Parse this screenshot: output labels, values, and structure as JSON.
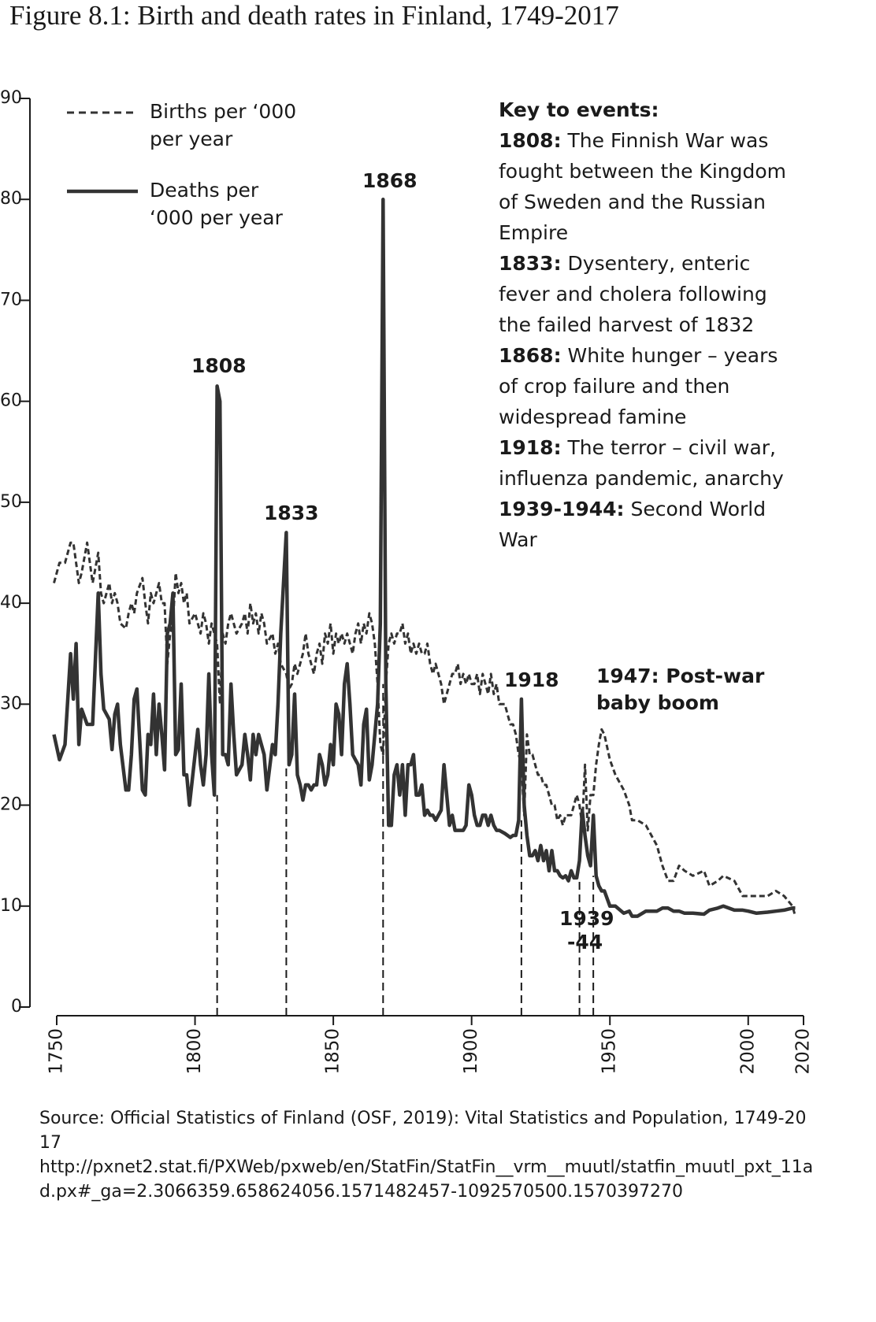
{
  "chart_data": {
    "type": "line",
    "title": "Figure 8.1: Birth and death rates in Finland, 1749-2017",
    "x": [
      1749,
      1751,
      1753,
      1755,
      1756,
      1757,
      1758,
      1759,
      1761,
      1763,
      1765,
      1766,
      1767,
      1769,
      1770,
      1771,
      1772,
      1773,
      1775,
      1776,
      1777,
      1778,
      1779,
      1781,
      1782,
      1783,
      1784,
      1785,
      1786,
      1787,
      1788,
      1789,
      1790,
      1791,
      1792,
      1793,
      1794,
      1795,
      1796,
      1797,
      1798,
      1800,
      1801,
      1802,
      1803,
      1804,
      1805,
      1806,
      1807,
      1808,
      1809,
      1810,
      1811,
      1812,
      1813,
      1814,
      1815,
      1817,
      1818,
      1819,
      1820,
      1821,
      1822,
      1823,
      1824,
      1825,
      1826,
      1828,
      1829,
      1830,
      1831,
      1833,
      1834,
      1835,
      1836,
      1837,
      1838,
      1839,
      1840,
      1841,
      1842,
      1843,
      1844,
      1845,
      1846,
      1847,
      1848,
      1849,
      1850,
      1851,
      1852,
      1853,
      1854,
      1855,
      1856,
      1857,
      1858,
      1859,
      1860,
      1861,
      1862,
      1863,
      1864,
      1865,
      1866,
      1867,
      1868,
      1869,
      1870,
      1871,
      1872,
      1873,
      1874,
      1875,
      1876,
      1877,
      1878,
      1879,
      1880,
      1881,
      1882,
      1883,
      1884,
      1885,
      1886,
      1887,
      1888,
      1889,
      1890,
      1891,
      1892,
      1893,
      1894,
      1895,
      1896,
      1897,
      1898,
      1899,
      1900,
      1901,
      1902,
      1903,
      1904,
      1905,
      1906,
      1907,
      1908,
      1909,
      1910,
      1912,
      1914,
      1915,
      1916,
      1917,
      1918,
      1919,
      1920,
      1921,
      1922,
      1923,
      1924,
      1925,
      1926,
      1927,
      1928,
      1929,
      1930,
      1931,
      1932,
      1933,
      1934,
      1935,
      1936,
      1937,
      1938,
      1939,
      1940,
      1941,
      1942,
      1943,
      1944,
      1945,
      1946,
      1947,
      1948,
      1950,
      1952,
      1955,
      1957,
      1958,
      1960,
      1963,
      1965,
      1967,
      1969,
      1971,
      1973,
      1975,
      1977,
      1980,
      1984,
      1986,
      1989,
      1991,
      1995,
      1998,
      2000,
      2003,
      2007,
      2010,
      2013,
      2016,
      2017
    ],
    "series": [
      {
        "name": "Births per ‘000 per year",
        "color": "#333333",
        "dash": "dashed",
        "values": [
          42,
          44,
          44,
          46,
          46,
          44,
          42,
          43,
          46,
          42,
          45,
          41,
          40,
          42,
          40,
          41,
          40,
          38,
          37.5,
          39,
          40,
          39,
          41,
          42.5,
          40,
          38,
          41,
          40,
          41,
          42,
          40,
          40,
          34,
          37,
          38,
          43,
          41,
          42,
          40,
          41,
          38,
          39,
          38,
          37,
          39,
          38,
          36,
          38,
          37,
          36,
          30,
          37,
          36,
          38,
          39,
          38,
          37,
          38,
          39,
          37,
          40,
          38,
          39,
          37,
          39,
          38,
          36,
          37,
          35,
          36,
          34,
          33,
          31.5,
          32,
          34,
          33,
          34,
          35,
          37,
          35,
          34,
          33,
          35,
          36,
          34,
          37,
          36,
          38,
          35,
          37,
          36,
          37,
          36,
          37,
          36,
          35,
          37,
          38,
          36,
          38,
          37,
          39,
          38,
          36,
          32,
          26,
          25,
          32,
          36,
          37,
          36,
          37,
          37,
          38,
          36,
          37,
          35,
          36,
          35,
          36,
          35,
          35,
          36,
          34,
          33,
          34,
          33,
          32,
          30,
          31,
          32,
          33,
          33,
          34,
          32,
          33,
          32,
          33,
          32,
          32,
          33,
          31,
          33,
          32,
          31,
          33,
          31,
          32,
          30,
          30,
          28,
          28,
          27,
          25,
          24,
          19,
          27,
          25,
          25,
          24,
          23,
          23,
          22,
          22,
          21,
          20,
          20,
          18.5,
          19,
          18,
          19,
          19,
          19,
          20,
          21,
          20,
          18,
          24,
          17.5,
          21,
          21,
          24,
          26,
          27.5,
          27,
          24.5,
          23,
          21.5,
          20,
          18.5,
          18.5,
          18,
          17,
          16,
          14,
          12.5,
          12.5,
          14,
          13.5,
          13,
          13.5,
          12,
          12.5,
          13,
          12.5,
          11,
          11,
          11,
          11,
          11.5,
          11,
          10,
          9
        ]
      },
      {
        "name": "Deaths per ‘000 per year",
        "color": "#333333",
        "dash": "solid",
        "values": [
          27,
          24.5,
          26,
          35,
          30.5,
          36,
          26,
          29.5,
          28,
          28,
          41,
          33,
          29.5,
          28.5,
          25.5,
          29,
          30,
          26,
          21.5,
          21.5,
          25,
          30.5,
          31.5,
          21.5,
          21,
          27,
          26,
          31,
          25,
          30,
          27,
          23.5,
          37,
          38,
          41,
          25,
          25.5,
          32,
          23,
          23,
          20,
          25,
          27.5,
          24,
          22,
          25,
          33,
          25,
          21,
          61.5,
          60,
          25,
          25,
          24,
          32,
          27,
          23,
          24,
          27,
          25,
          22.5,
          27,
          25,
          27,
          26,
          25,
          21.5,
          26,
          25,
          30,
          37,
          47,
          24,
          25,
          31,
          23,
          22,
          20.5,
          22,
          22,
          21.5,
          22,
          22,
          25,
          24,
          22,
          23,
          26,
          24,
          30,
          29,
          25,
          32,
          34,
          30,
          25,
          24.5,
          24,
          22,
          28,
          29.5,
          22.5,
          24,
          27,
          30,
          38,
          80,
          32,
          18,
          18,
          23,
          24,
          21,
          24,
          19,
          24,
          24,
          25,
          21,
          21,
          22,
          19,
          19.5,
          19,
          19,
          18.5,
          19,
          19.5,
          24,
          21,
          18,
          19,
          17.5,
          17.5,
          17.5,
          17.5,
          18,
          22,
          21,
          19,
          18,
          18,
          19,
          19,
          18,
          19,
          18,
          17.5,
          17.5,
          17.2,
          16.8,
          17,
          17,
          18.5,
          30.5,
          20,
          17,
          15,
          15,
          15.5,
          14.5,
          16,
          14.5,
          15.5,
          13.5,
          15.5,
          13.5,
          13.5,
          13,
          12.8,
          13,
          12.5,
          13.5,
          12.8,
          12.8,
          14.5,
          19.5,
          17,
          15,
          14,
          19,
          13,
          12,
          11.5,
          11.5,
          10,
          10,
          9.3,
          9.5,
          9,
          9,
          9.5,
          9.5,
          9.5,
          9.8,
          9.8,
          9.5,
          9.5,
          9.3,
          9.3,
          9.2,
          9.6,
          9.8,
          10,
          9.6,
          9.6,
          9.5,
          9.3,
          9.4,
          9.5,
          9.6,
          9.8,
          9.8
        ]
      }
    ],
    "xlim": [
      1750,
      2020
    ],
    "xticks": [
      1750,
      1800,
      1850,
      1900,
      1950,
      2000,
      2020
    ],
    "ylim": [
      0,
      90
    ],
    "yticks": [
      0,
      10,
      20,
      30,
      40,
      50,
      60,
      70,
      80,
      90
    ],
    "event_lines": [
      1808,
      1833,
      1868,
      1918,
      1939,
      1944
    ],
    "annotations": [
      "1808",
      "1833",
      "1868",
      "1918",
      "1939",
      "-44",
      "1947: Post-war",
      "baby boom"
    ],
    "key": {
      "title": "Key to events:",
      "items": [
        {
          "label": "1808:",
          "text": "The Finnish War was fought between the Kingdom of Sweden and the Russian Empire"
        },
        {
          "label": "1833:",
          "text": "Dysentery, enteric fever and cholera following the failed harvest of 1832"
        },
        {
          "label": "1868:",
          "text": "White hunger – years of crop failure and then widespread famine"
        },
        {
          "label": "1918:",
          "text": "The terror – civil war, influenza pandemic, anarchy"
        },
        {
          "label": "1939-1944:",
          "text": "Second World War"
        }
      ]
    },
    "source": "Source: Official Statistics of Finland (OSF, 2019): Vital Statistics and Population, 1749-2017",
    "url": "http://pxnet2.stat.fi/PXWeb/pxweb/en/StatFin/StatFin__vrm__muutl/statfin_muutl_pxt_11ad.px#_ga=2.3066359.658624056.1571482457-1092570500.1570397270"
  }
}
